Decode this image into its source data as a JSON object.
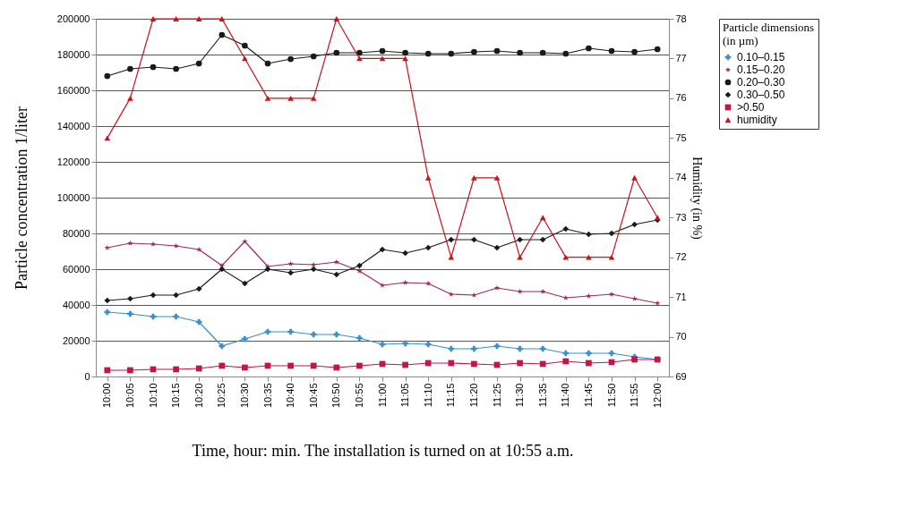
{
  "chart_data": {
    "type": "line",
    "xlabel": "Time, hour: min. The installation is turned on at 10:55 a.m.",
    "ylabel": "Particle concentration 1/liter",
    "y2label": "Humidity (in %)",
    "legend_title": "Particle dimensions\n(in µm)",
    "categories": [
      "10:00",
      "10:05",
      "10:10",
      "10:15",
      "10:20",
      "10:25",
      "10:30",
      "10:35",
      "10:40",
      "10:45",
      "10:50",
      "10:55",
      "11:00",
      "11:05",
      "11:10",
      "11:15",
      "11:20",
      "11:25",
      "11:30",
      "11:35",
      "11:40",
      "11:45",
      "11:50",
      "11:55",
      "12:00"
    ],
    "series": [
      {
        "name": "0.10–0.15",
        "color": "#3a8fc8",
        "marker": "cross",
        "values": [
          36000,
          35000,
          33500,
          33500,
          30500,
          17000,
          21000,
          25000,
          25000,
          23500,
          23500,
          21500,
          18000,
          18500,
          18000,
          15500,
          15500,
          17000,
          15500,
          15500,
          13000,
          13000,
          13000,
          11000,
          9500
        ]
      },
      {
        "name": "0.15–0.20",
        "color": "#9b2d4e",
        "marker": "star",
        "values": [
          72000,
          74500,
          74000,
          73000,
          71000,
          62000,
          75500,
          61500,
          63000,
          62500,
          64000,
          59000,
          51000,
          52500,
          52000,
          46000,
          45500,
          49500,
          47500,
          47500,
          44000,
          45000,
          46000,
          43500,
          41000
        ]
      },
      {
        "name": "0.20–0.30",
        "color": "#1a1a1a",
        "marker": "circle",
        "values": [
          168000,
          172000,
          173000,
          172000,
          175000,
          191000,
          185000,
          175000,
          177500,
          179000,
          181000,
          181000,
          182000,
          181000,
          180500,
          180500,
          181500,
          182000,
          181000,
          181000,
          180500,
          183500,
          182000,
          181500,
          183000
        ]
      },
      {
        "name": "0.30–0.50",
        "color": "#1a1a1a",
        "marker": "diamond",
        "values": [
          42500,
          43500,
          45500,
          45500,
          49000,
          60000,
          52000,
          60000,
          58000,
          60000,
          57000,
          62000,
          71000,
          69000,
          72000,
          76500,
          76500,
          72000,
          76500,
          76500,
          82500,
          79500,
          80000,
          85000,
          87500
        ]
      },
      {
        "name": ">0.50",
        "color": "#c0164a",
        "marker": "square",
        "values": [
          3500,
          3500,
          4000,
          4000,
          4500,
          6000,
          5000,
          6000,
          6000,
          6000,
          5000,
          6000,
          7000,
          6500,
          7500,
          7500,
          7000,
          6500,
          7500,
          7000,
          8500,
          7500,
          8000,
          9500,
          9500
        ]
      },
      {
        "name": "humidity",
        "color": "#c8141e",
        "marker": "triangle",
        "axis": "y2",
        "values": [
          75,
          76,
          78,
          78,
          78,
          78,
          77,
          76,
          76,
          76,
          78,
          77,
          77,
          77,
          74,
          72,
          74,
          74,
          72,
          73,
          72,
          72,
          72,
          74,
          73
        ]
      }
    ],
    "ylim": [
      0,
      200000
    ],
    "yticks": [
      0,
      20000,
      40000,
      60000,
      80000,
      100000,
      120000,
      140000,
      160000,
      180000,
      200000
    ],
    "y2lim": [
      69,
      78
    ],
    "y2ticks": [
      69,
      70,
      71,
      72,
      73,
      74,
      75,
      76,
      77,
      78
    ],
    "grid": "y",
    "legend": "right",
    "line_style": "solid"
  }
}
